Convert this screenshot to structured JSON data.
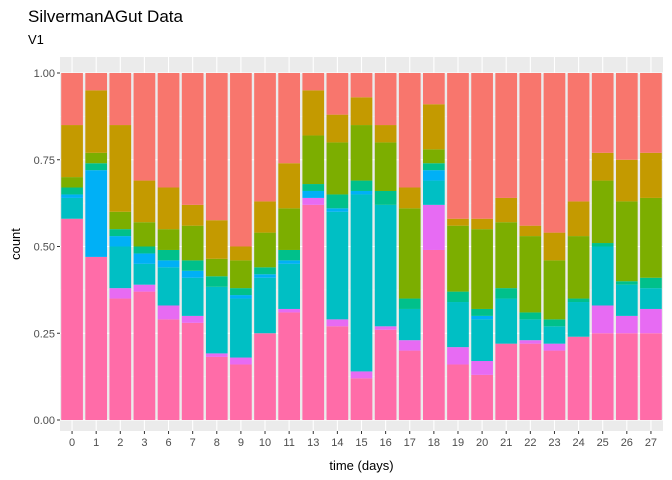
{
  "chart_data": {
    "type": "bar",
    "stacked": true,
    "normalized": true,
    "title": "SilvermanAGut Data",
    "subtitle": "V1",
    "xlabel": "time (days)",
    "ylabel": "count",
    "ylim": [
      0,
      1
    ],
    "yticks": [
      "0.00",
      "0.25",
      "0.50",
      "0.75",
      "1.00"
    ],
    "categories": [
      "0",
      "1",
      "2",
      "3",
      "6",
      "7",
      "8",
      "9",
      "10",
      "11",
      "13",
      "14",
      "15",
      "16",
      "17",
      "18",
      "19",
      "20",
      "21",
      "22",
      "23",
      "24",
      "25",
      "26",
      "27"
    ],
    "grid": true,
    "legend": "none",
    "series": [
      {
        "color": "#ff6ca8",
        "values": [
          0.58,
          0.47,
          0.35,
          0.37,
          0.29,
          0.28,
          0.18,
          0.16,
          0.25,
          0.31,
          0.62,
          0.27,
          0.12,
          0.26,
          0.2,
          0.49,
          0.16,
          0.13,
          0.22,
          0.22,
          0.2,
          0.24,
          0.25,
          0.25,
          0.25
        ]
      },
      {
        "color": "#e76bf3",
        "values": [
          0.0,
          0.0,
          0.03,
          0.02,
          0.04,
          0.02,
          0.01,
          0.02,
          0.0,
          0.01,
          0.02,
          0.02,
          0.02,
          0.01,
          0.03,
          0.13,
          0.05,
          0.04,
          0.0,
          0.01,
          0.02,
          0.0,
          0.08,
          0.05,
          0.07
        ]
      },
      {
        "color": "#00bfc4",
        "values": [
          0.06,
          0.0,
          0.12,
          0.06,
          0.11,
          0.11,
          0.19,
          0.17,
          0.16,
          0.13,
          0.0,
          0.31,
          0.51,
          0.35,
          0.09,
          0.07,
          0.13,
          0.12,
          0.13,
          0.06,
          0.05,
          0.1,
          0.17,
          0.09,
          0.06
        ]
      },
      {
        "color": "#00b0f6",
        "values": [
          0.01,
          0.25,
          0.03,
          0.03,
          0.02,
          0.02,
          0.0,
          0.01,
          0.01,
          0.01,
          0.02,
          0.01,
          0.01,
          0.0,
          0.0,
          0.03,
          0.0,
          0.01,
          0.0,
          0.0,
          0.0,
          0.0,
          0.0,
          0.0,
          0.0
        ]
      },
      {
        "color": "#00c08b",
        "values": [
          0.02,
          0.02,
          0.02,
          0.02,
          0.03,
          0.03,
          0.03,
          0.02,
          0.02,
          0.03,
          0.02,
          0.04,
          0.03,
          0.04,
          0.03,
          0.02,
          0.03,
          0.02,
          0.03,
          0.02,
          0.02,
          0.01,
          0.01,
          0.01,
          0.03
        ]
      },
      {
        "color": "#7cae00",
        "values": [
          0.03,
          0.03,
          0.05,
          0.07,
          0.06,
          0.1,
          0.05,
          0.08,
          0.1,
          0.12,
          0.14,
          0.15,
          0.16,
          0.14,
          0.26,
          0.04,
          0.19,
          0.23,
          0.19,
          0.22,
          0.17,
          0.18,
          0.18,
          0.23,
          0.23
        ]
      },
      {
        "color": "#c49a00",
        "values": [
          0.15,
          0.18,
          0.25,
          0.12,
          0.12,
          0.06,
          0.11,
          0.04,
          0.09,
          0.13,
          0.13,
          0.08,
          0.08,
          0.05,
          0.06,
          0.13,
          0.02,
          0.03,
          0.07,
          0.03,
          0.08,
          0.1,
          0.08,
          0.12,
          0.13
        ]
      },
      {
        "color": "#f8766d",
        "values": [
          0.15,
          0.05,
          0.15,
          0.31,
          0.33,
          0.38,
          0.42,
          0.5,
          0.37,
          0.26,
          0.05,
          0.12,
          0.07,
          0.15,
          0.33,
          0.09,
          0.42,
          0.42,
          0.36,
          0.44,
          0.46,
          0.37,
          0.23,
          0.25,
          0.23
        ]
      }
    ]
  }
}
